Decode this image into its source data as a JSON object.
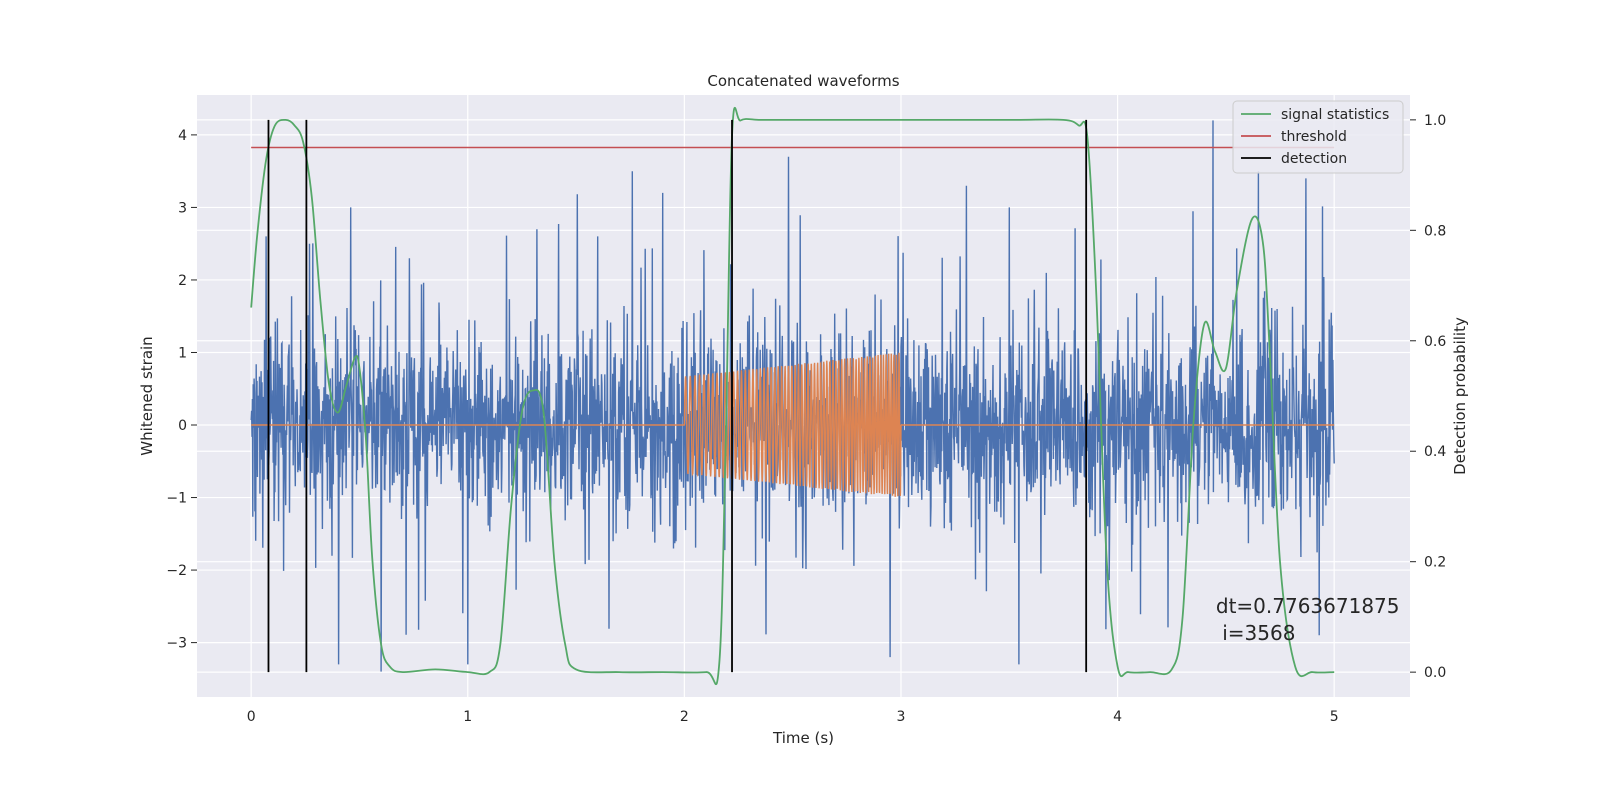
{
  "chart_data": {
    "type": "line",
    "title": "Concatenated waveforms",
    "xlabel": "Time (s)",
    "ylabel": "Whitened strain",
    "ylabel_right": "Detection probability",
    "xlim": [
      -0.25,
      5.35
    ],
    "ylim": [
      -3.75,
      4.55
    ],
    "ylim_right": [
      -0.045,
      1.045
    ],
    "x_ticks": [
      0,
      1,
      2,
      3,
      4,
      5
    ],
    "x_tick_labels": [
      "0",
      "1",
      "2",
      "3",
      "4",
      "5"
    ],
    "y_ticks": [
      -3,
      -2,
      -1,
      0,
      1,
      2,
      3,
      4
    ],
    "y_tick_labels": [
      "−3",
      "−2",
      "−1",
      "0",
      "1",
      "2",
      "3",
      "4"
    ],
    "y_right_ticks": [
      0.0,
      0.2,
      0.4,
      0.6,
      0.8,
      1.0
    ],
    "y_right_tick_labels": [
      "0.0",
      "0.2",
      "0.4",
      "0.6",
      "0.8",
      "1.0"
    ],
    "grid": true,
    "background": "#EAEAF2",
    "legend_position": "top-right",
    "legend": [
      {
        "label": "signal statistics",
        "color": "#55A868"
      },
      {
        "label": "threshold",
        "color": "#C44E52"
      },
      {
        "label": "detection",
        "color": "#000000"
      }
    ],
    "series": [
      {
        "name": "noise",
        "axis": "left",
        "color": "#4C72B0",
        "description_values": "dense noise between about -3.4 and 4.2",
        "x_range": [
          0,
          5
        ],
        "typical_amplitude": 1.6,
        "peaks": [
          {
            "x": 0.07,
            "y": 2.6
          },
          {
            "x": 0.27,
            "y": 2.5
          },
          {
            "x": 0.46,
            "y": 3.0
          },
          {
            "x": 0.6,
            "y": -3.4
          },
          {
            "x": 0.73,
            "y": 2.3
          },
          {
            "x": 1.0,
            "y": -3.3
          },
          {
            "x": 1.32,
            "y": 2.7
          },
          {
            "x": 1.6,
            "y": 2.6
          },
          {
            "x": 1.76,
            "y": 3.5
          },
          {
            "x": 1.9,
            "y": 3.2
          },
          {
            "x": 2.48,
            "y": 3.7
          },
          {
            "x": 2.95,
            "y": -3.2
          },
          {
            "x": 3.5,
            "y": 3.0
          },
          {
            "x": 4.44,
            "y": 4.2
          },
          {
            "x": 4.65,
            "y": 3.5
          },
          {
            "x": 4.87,
            "y": 3.4
          },
          {
            "x": 4.93,
            "y": -2.9
          }
        ]
      },
      {
        "name": "injection",
        "axis": "left",
        "color": "#DD8452",
        "flat_value": 0,
        "chirp_start": 2.0,
        "chirp_end": 3.0,
        "chirp_amplitude_start": 0.67,
        "chirp_amplitude_end": 1.0
      },
      {
        "name": "signal statistics",
        "axis": "right",
        "color": "#55A868",
        "x": [
          0.0,
          0.03,
          0.07,
          0.11,
          0.16,
          0.2,
          0.24,
          0.28,
          0.32,
          0.36,
          0.4,
          0.44,
          0.48,
          0.5,
          0.53,
          0.56,
          0.6,
          0.64,
          0.7,
          0.85,
          1.0,
          1.1,
          1.15,
          1.2,
          1.25,
          1.3,
          1.35,
          1.4,
          1.45,
          1.5,
          1.7,
          1.9,
          2.1,
          2.16,
          2.19,
          2.22,
          2.26,
          2.35,
          2.5,
          3.0,
          3.5,
          3.75,
          3.82,
          3.86,
          3.9,
          3.95,
          4.0,
          4.05,
          4.15,
          4.25,
          4.3,
          4.35,
          4.4,
          4.45,
          4.5,
          4.55,
          4.62,
          4.67,
          4.7,
          4.75,
          4.82,
          4.9,
          5.0
        ],
        "values": [
          0.66,
          0.8,
          0.93,
          0.99,
          1.0,
          0.99,
          0.96,
          0.86,
          0.67,
          0.52,
          0.47,
          0.52,
          0.57,
          0.55,
          0.42,
          0.2,
          0.05,
          0.01,
          0.0,
          0.005,
          0.0,
          0.0,
          0.05,
          0.3,
          0.47,
          0.51,
          0.47,
          0.2,
          0.05,
          0.005,
          0.0,
          0.0,
          0.0,
          0.01,
          0.4,
          0.97,
          0.999,
          1.0,
          1.0,
          1.0,
          1.0,
          1.0,
          0.99,
          0.97,
          0.7,
          0.2,
          0.01,
          0.0,
          0.0,
          0.005,
          0.1,
          0.45,
          0.63,
          0.58,
          0.55,
          0.69,
          0.82,
          0.78,
          0.6,
          0.2,
          0.01,
          0.0,
          0.0
        ]
      }
    ],
    "threshold": {
      "value": 0.95,
      "axis": "right",
      "x_range": [
        0,
        5
      ],
      "color": "#C44E52"
    },
    "detections": [
      0.08,
      0.255,
      2.22,
      3.855
    ],
    "annotation": {
      "text": "dt=0.7763671875\n i=3568",
      "line1": "dt=0.7763671875",
      "line2": " i=3568",
      "x": 4.5,
      "y": 0.1
    }
  }
}
